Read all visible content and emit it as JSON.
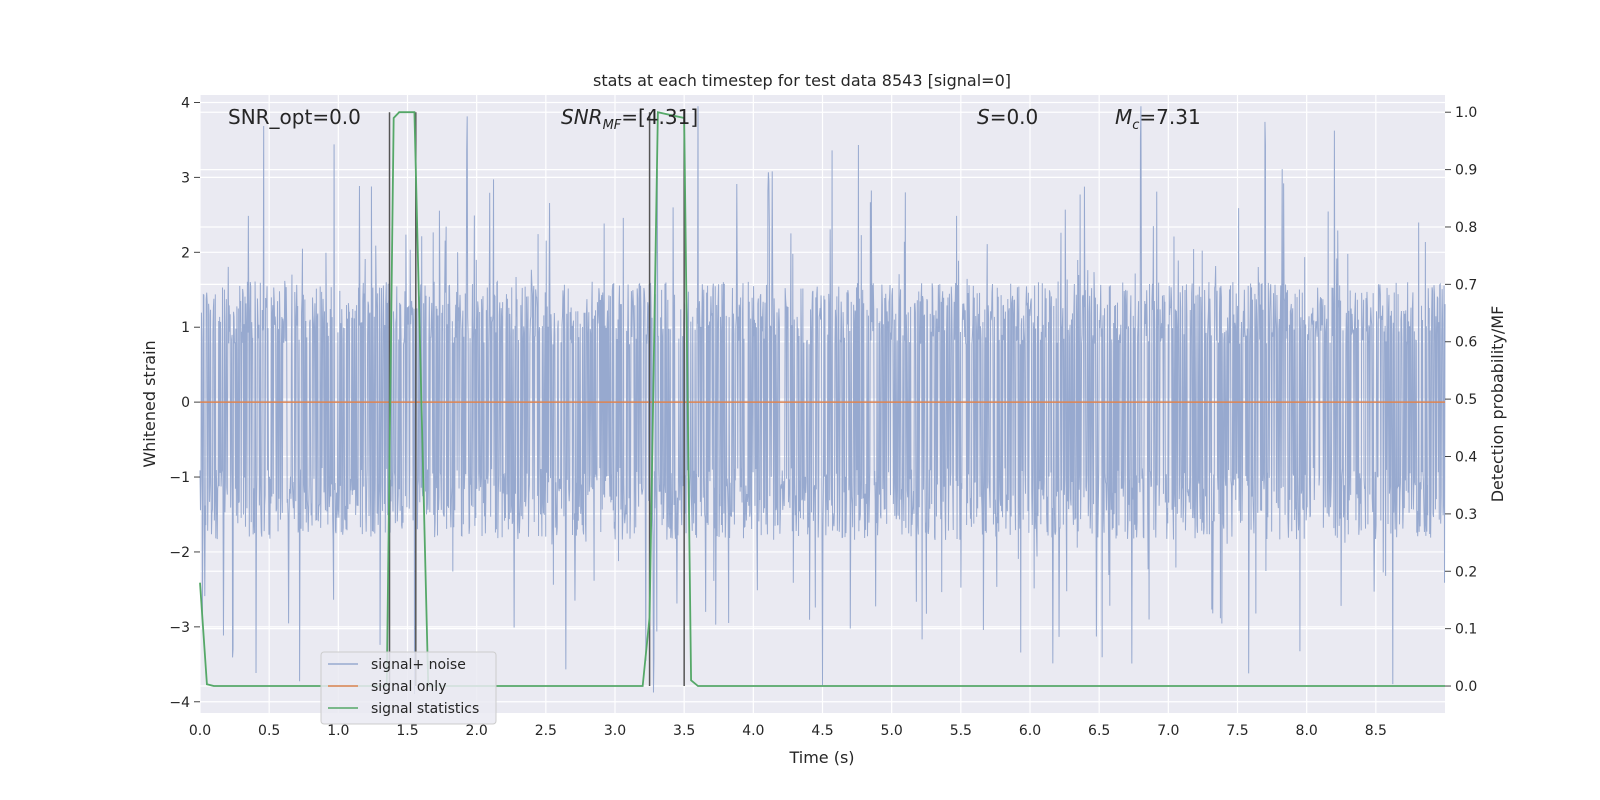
{
  "chart_data": {
    "type": "line",
    "title": "stats at each timestep for test data 8543 [signal=0]",
    "xlabel": "Time (s)",
    "ylabel_left": "Whitened strain",
    "ylabel_right": "Detection probability/MF",
    "xlim": [
      0.0,
      9.0
    ],
    "ylim_left": [
      -4.15,
      4.1
    ],
    "ylim_right": [
      -0.047,
      1.03
    ],
    "x_ticks": [
      "0.0",
      "0.5",
      "1.0",
      "1.5",
      "2.0",
      "2.5",
      "3.0",
      "3.5",
      "4.0",
      "4.5",
      "5.0",
      "5.5",
      "6.0",
      "6.5",
      "7.0",
      "7.5",
      "8.0",
      "8.5"
    ],
    "y_left_ticks": [
      "−4",
      "−3",
      "−2",
      "−1",
      "0",
      "1",
      "2",
      "3",
      "4"
    ],
    "y_right_ticks": [
      "0.0",
      "0.1",
      "0.2",
      "0.3",
      "0.4",
      "0.5",
      "0.6",
      "0.7",
      "0.8",
      "0.9",
      "1.0"
    ],
    "grid": true,
    "legend_position": "bottom-left",
    "annotations": {
      "snr_opt": "SNR_opt=0.0",
      "snr_mf_sym": "SNR",
      "snr_mf_sub": "MF",
      "snr_mf_val": "=[4.31]",
      "s_sym": "S",
      "s_val": "=0.0",
      "mc_sym": "M",
      "mc_sub": "c",
      "mc_val": "=7.31"
    },
    "series": [
      {
        "name": "signal+ noise",
        "color": "#97a9cf",
        "description_noise_band": [
          -1.6,
          1.4
        ],
        "notable_peaks_x": [
          0.24,
          0.46,
          0.72,
          0.97,
          1.55,
          1.93,
          3.28,
          3.6,
          4.5,
          4.76,
          5.22,
          6.8,
          7.58,
          7.7,
          7.95,
          8.2
        ]
      },
      {
        "name": "signal only",
        "color": "#dd8452",
        "x": [
          0.0,
          9.0
        ],
        "y": [
          0.0,
          0.0
        ]
      },
      {
        "name": "signal statistics",
        "color": "#55a868",
        "axis": "right",
        "x": [
          0.0,
          0.05,
          0.1,
          1.35,
          1.4,
          1.44,
          1.55,
          1.65,
          1.72,
          3.2,
          3.25,
          3.31,
          3.5,
          3.55,
          3.6,
          9.0
        ],
        "y": [
          0.18,
          0.003,
          0.0,
          0.0,
          0.99,
          1.0,
          1.0,
          0.0,
          0.0,
          0.0,
          0.12,
          1.0,
          0.99,
          0.01,
          0.0,
          0.0
        ]
      }
    ],
    "vertical_markers_x": [
      1.37,
      1.56,
      3.25,
      3.5
    ],
    "vertical_markers_color": "#555555"
  }
}
